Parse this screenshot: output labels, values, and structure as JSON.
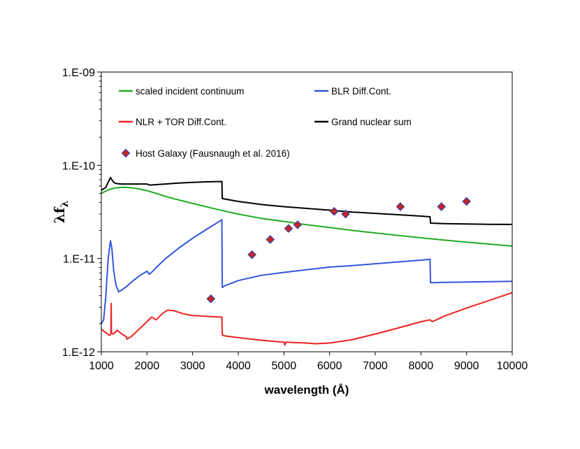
{
  "chart_data": {
    "type": "line",
    "xlabel": "wavelength (Å)",
    "ylabel": "λf",
    "ylabel_subscript": "λ",
    "xlim": [
      1000,
      10000
    ],
    "ylim": [
      1e-12,
      1e-09
    ],
    "yscale": "log",
    "grid": false,
    "legend_position": "top-left",
    "xticks": [
      1000,
      2000,
      3000,
      4000,
      5000,
      6000,
      7000,
      8000,
      9000,
      10000
    ],
    "xtick_labels": [
      "1000",
      "2000",
      "3000",
      "4000",
      "5000",
      "6000",
      "7000",
      "8000",
      "9000",
      "10000"
    ],
    "yticks": [
      1e-12,
      1e-11,
      1e-10,
      1e-09
    ],
    "ytick_labels": [
      "1.E-12",
      "1.E-11",
      "1.E-10",
      "1.E-09"
    ],
    "series": [
      {
        "name": "scaled incident continuum",
        "color": "#22aa22",
        "kind": "line",
        "x": [
          1000,
          1100,
          1200,
          1300,
          1400,
          1500,
          1600,
          1700,
          1800,
          2000,
          2200,
          2500,
          3000,
          3500,
          4000,
          4500,
          5000,
          5500,
          6000,
          6500,
          7000,
          7500,
          8000,
          8500,
          9000,
          9500,
          10000
        ],
        "y": [
          5e-11,
          5.3e-11,
          5.55e-11,
          5.7e-11,
          5.78e-11,
          5.8e-11,
          5.78e-11,
          5.7e-11,
          5.6e-11,
          5.35e-11,
          5e-11,
          4.5e-11,
          3.9e-11,
          3.4e-11,
          3e-11,
          2.7e-11,
          2.5e-11,
          2.3e-11,
          2.15e-11,
          2e-11,
          1.88e-11,
          1.77e-11,
          1.67e-11,
          1.58e-11,
          1.5e-11,
          1.43e-11,
          1.36e-11
        ]
      },
      {
        "name": "BLR Diff.Cont.",
        "color": "#3355dd",
        "kind": "line",
        "x": [
          1000,
          1050,
          1100,
          1150,
          1200,
          1230,
          1270,
          1320,
          1380,
          1450,
          1550,
          1700,
          1850,
          2000,
          2050,
          2100,
          2200,
          2400,
          2700,
          3000,
          3300,
          3640,
          3650,
          3700,
          4000,
          4500,
          5000,
          5500,
          6000,
          6500,
          7000,
          7500,
          8000,
          8200,
          8210,
          8500,
          9000,
          9500,
          10000
        ],
        "y": [
          2e-12,
          2.2e-12,
          4e-12,
          1e-11,
          1.55e-11,
          1.3e-11,
          7.5e-12,
          5.2e-12,
          4.4e-12,
          4.6e-12,
          5e-12,
          5.8e-12,
          6.6e-12,
          7.3e-12,
          6.8e-12,
          7.1e-12,
          8e-12,
          9.9e-12,
          1.3e-11,
          1.65e-11,
          2.05e-11,
          2.6e-11,
          4.9e-12,
          5.1e-12,
          5.8e-12,
          6.6e-12,
          7.1e-12,
          7.6e-12,
          8.1e-12,
          8.4e-12,
          8.8e-12,
          9.2e-12,
          9.6e-12,
          9.8e-12,
          5.5e-12,
          5.55e-12,
          5.6e-12,
          5.65e-12,
          5.7e-12
        ]
      },
      {
        "name": "NLR + TOR Diff.Cont.",
        "color": "#ee2222",
        "kind": "line",
        "x": [
          1000,
          1100,
          1180,
          1210,
          1216,
          1222,
          1260,
          1350,
          1450,
          1550,
          1560,
          1650,
          1800,
          2000,
          2100,
          2200,
          2350,
          2450,
          2600,
          2800,
          3000,
          3300,
          3640,
          3650,
          3700,
          4000,
          4500,
          5000,
          5020,
          5040,
          5500,
          5700,
          6000,
          6500,
          7000,
          7500,
          8000,
          8200,
          8250,
          8500,
          9000,
          9500,
          10000
        ],
        "y": [
          1.75e-12,
          1.6e-12,
          1.5e-12,
          1.55e-12,
          3.3e-12,
          1.6e-12,
          1.55e-12,
          1.7e-12,
          1.55e-12,
          1.45e-12,
          1.37e-12,
          1.45e-12,
          1.7e-12,
          2.1e-12,
          2.35e-12,
          2.2e-12,
          2.6e-12,
          2.8e-12,
          2.75e-12,
          2.55e-12,
          2.45e-12,
          2.4e-12,
          2.35e-12,
          1.52e-12,
          1.48e-12,
          1.42e-12,
          1.33e-12,
          1.27e-12,
          1.18e-12,
          1.27e-12,
          1.24e-12,
          1.22e-12,
          1.24e-12,
          1.35e-12,
          1.55e-12,
          1.8e-12,
          2.1e-12,
          2.2e-12,
          2.1e-12,
          2.4e-12,
          2.95e-12,
          3.55e-12,
          4.3e-12
        ]
      },
      {
        "name": "Grand nuclear sum",
        "color": "#000000",
        "kind": "line",
        "x": [
          1000,
          1100,
          1150,
          1200,
          1230,
          1280,
          1350,
          1450,
          1600,
          1800,
          2000,
          2050,
          2100,
          2200,
          2400,
          2700,
          3000,
          3300,
          3640,
          3650,
          3700,
          4000,
          4500,
          5000,
          5500,
          6000,
          6500,
          7000,
          7500,
          8000,
          8200,
          8210,
          8500,
          9000,
          9500,
          10000
        ],
        "y": [
          5.4e-11,
          5.8e-11,
          6.6e-11,
          7.4e-11,
          7e-11,
          6.5e-11,
          6.35e-11,
          6.3e-11,
          6.3e-11,
          6.3e-11,
          6.3e-11,
          6.15e-11,
          6.15e-11,
          6.2e-11,
          6.3e-11,
          6.45e-11,
          6.55e-11,
          6.65e-11,
          6.7e-11,
          4.4e-11,
          4.35e-11,
          4.1e-11,
          3.8e-11,
          3.6e-11,
          3.45e-11,
          3.3e-11,
          3.15e-11,
          3.05e-11,
          2.95e-11,
          2.85e-11,
          2.8e-11,
          2.4e-11,
          2.37e-11,
          2.35e-11,
          2.33e-11,
          2.32e-11
        ]
      },
      {
        "name": "Host Galaxy (Fausnaugh et al. 2016)",
        "color": "#3344aa",
        "fill": "#cc2222",
        "kind": "scatter",
        "marker": "diamond",
        "x": [
          3400,
          4300,
          4700,
          5100,
          5300,
          6100,
          6350,
          7550,
          8450,
          9000
        ],
        "y": [
          3.7e-12,
          1.1e-11,
          1.6e-11,
          2.1e-11,
          2.3e-11,
          3.2e-11,
          3e-11,
          3.6e-11,
          3.6e-11,
          4.1e-11
        ]
      }
    ]
  }
}
